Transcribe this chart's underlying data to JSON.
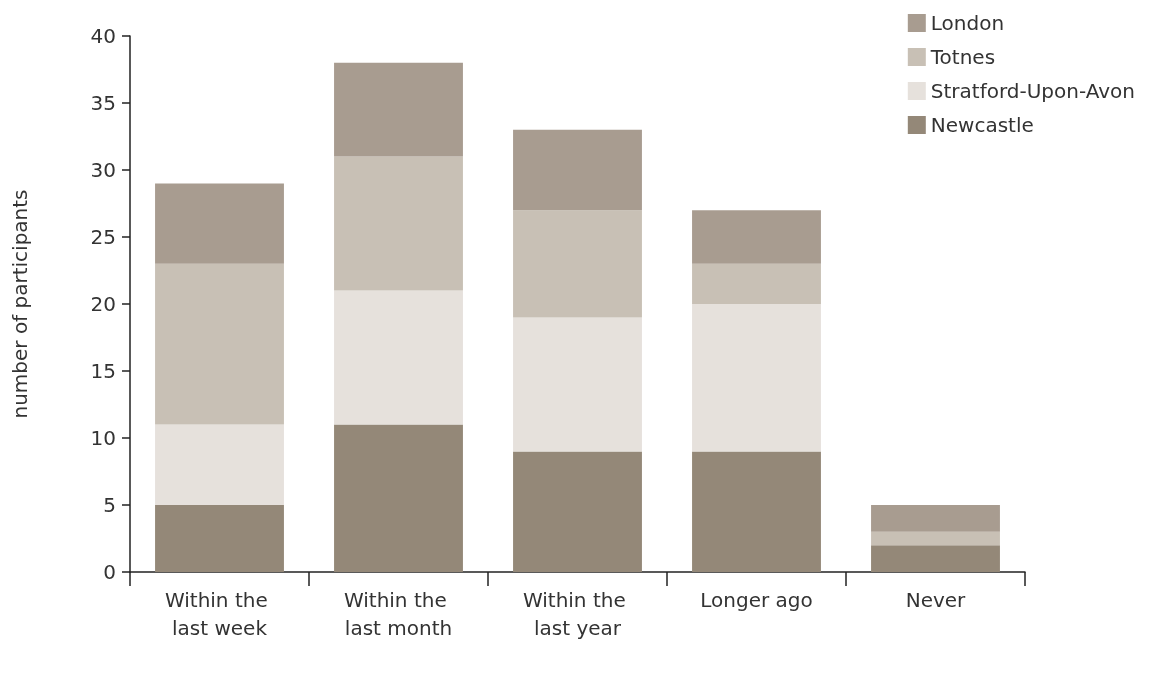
{
  "chart_data": {
    "type": "bar",
    "stacked": true,
    "ylabel": "number of participants",
    "categories": [
      "Within the last week",
      "Within the last month",
      "Within the last year",
      "Longer ago",
      "Never"
    ],
    "series": [
      {
        "name": "Newcastle",
        "color": "#948878",
        "values": [
          5,
          11,
          9,
          9,
          2
        ]
      },
      {
        "name": "Stratford-Upon-Avon",
        "color": "#e6e1dc",
        "values": [
          6,
          10,
          10,
          11,
          0
        ]
      },
      {
        "name": "Totnes",
        "color": "#c8c0b5",
        "values": [
          12,
          10,
          8,
          3,
          1
        ]
      },
      {
        "name": "London",
        "color": "#a89c90",
        "values": [
          6,
          7,
          6,
          4,
          2
        ]
      }
    ],
    "ylim": [
      0,
      40
    ],
    "yticks": [
      0,
      5,
      10,
      15,
      20,
      25,
      30,
      35,
      40
    ],
    "grid": false,
    "legend": "top right"
  }
}
